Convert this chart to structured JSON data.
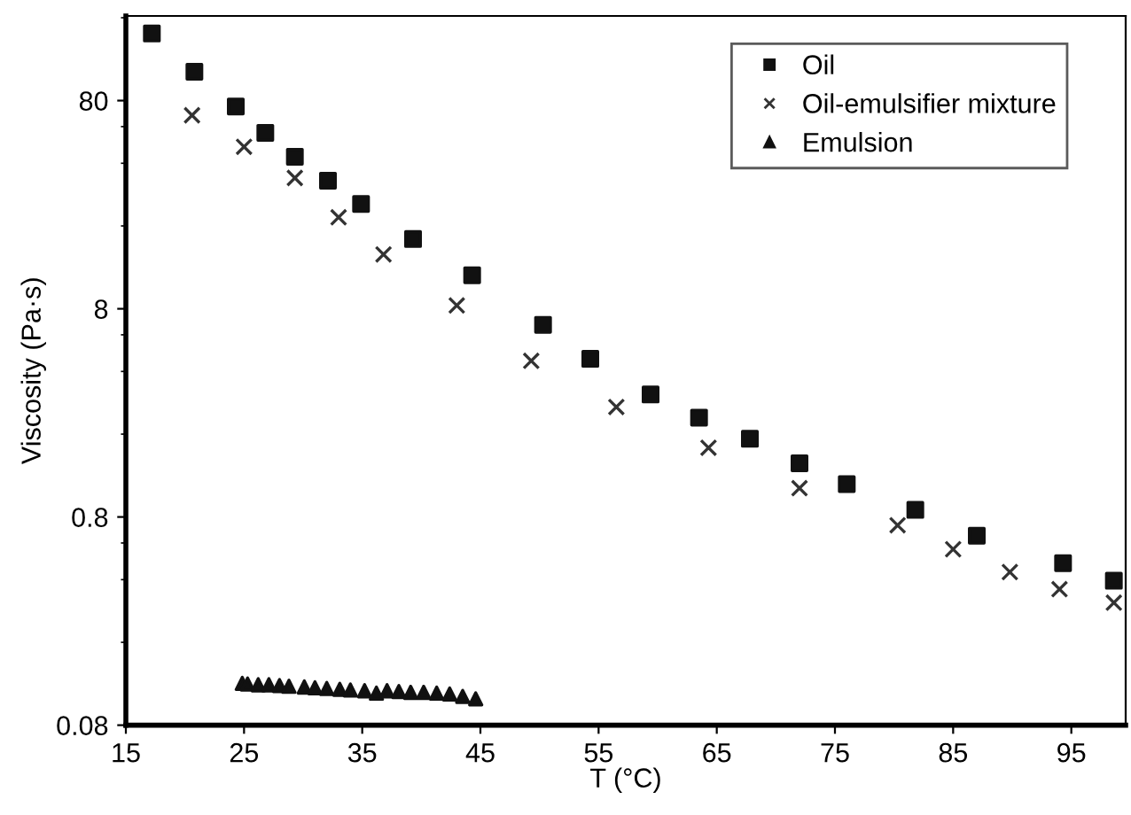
{
  "chart_data": {
    "type": "scatter",
    "xlabel": "T (°C)",
    "ylabel": "Viscosity (Pa·s)",
    "log": "y",
    "xlim": [
      15,
      99.6
    ],
    "ylim": [
      0.08,
      204
    ],
    "xticks": [
      15,
      25,
      35,
      45,
      55,
      65,
      75,
      85,
      95
    ],
    "yticks": [
      0.08,
      0.8,
      8,
      80
    ],
    "grid": false,
    "legend": "top right",
    "series": [
      {
        "name": "Oil",
        "color": "#111111",
        "marker": "square",
        "x": [
          17.2,
          20.8,
          24.3,
          26.8,
          29.3,
          32.1,
          34.9,
          39.3,
          44.3,
          50.3,
          54.3,
          59.4,
          63.5,
          67.8,
          72.0,
          76.0,
          81.8,
          87.0,
          94.3,
          98.6
        ],
        "values": [
          168,
          110,
          75,
          56,
          43,
          33,
          25.5,
          17.3,
          11.6,
          6.7,
          4.6,
          3.1,
          2.4,
          1.9,
          1.45,
          1.15,
          0.865,
          0.65,
          0.48,
          0.395
        ]
      },
      {
        "name": "Oil-emulsifier mixture",
        "color": "#333333",
        "marker": "cross",
        "x": [
          20.6,
          25.0,
          29.3,
          33.0,
          36.8,
          43.0,
          49.3,
          56.5,
          64.3,
          72.0,
          80.3,
          85.0,
          89.8,
          94.0,
          98.6
        ],
        "values": [
          68,
          48,
          34,
          22,
          14.6,
          8.3,
          4.5,
          2.7,
          1.72,
          1.1,
          0.73,
          0.56,
          0.435,
          0.36,
          0.31
        ]
      },
      {
        "name": "Emulsion",
        "color": "#111111",
        "marker": "triangle",
        "x": [
          24.85,
          25.3,
          26.2,
          27.1,
          28.0,
          28.8,
          30.1,
          31.0,
          32.0,
          33.1,
          34.0,
          35.2,
          36.2,
          37.1,
          38.1,
          39.1,
          40.2,
          41.3,
          42.4,
          43.5,
          44.6
        ],
        "values": [
          0.127,
          0.126,
          0.125,
          0.125,
          0.124,
          0.123,
          0.122,
          0.121,
          0.12,
          0.119,
          0.118,
          0.117,
          0.114,
          0.117,
          0.116,
          0.115,
          0.115,
          0.114,
          0.113,
          0.11,
          0.107
        ]
      }
    ]
  }
}
